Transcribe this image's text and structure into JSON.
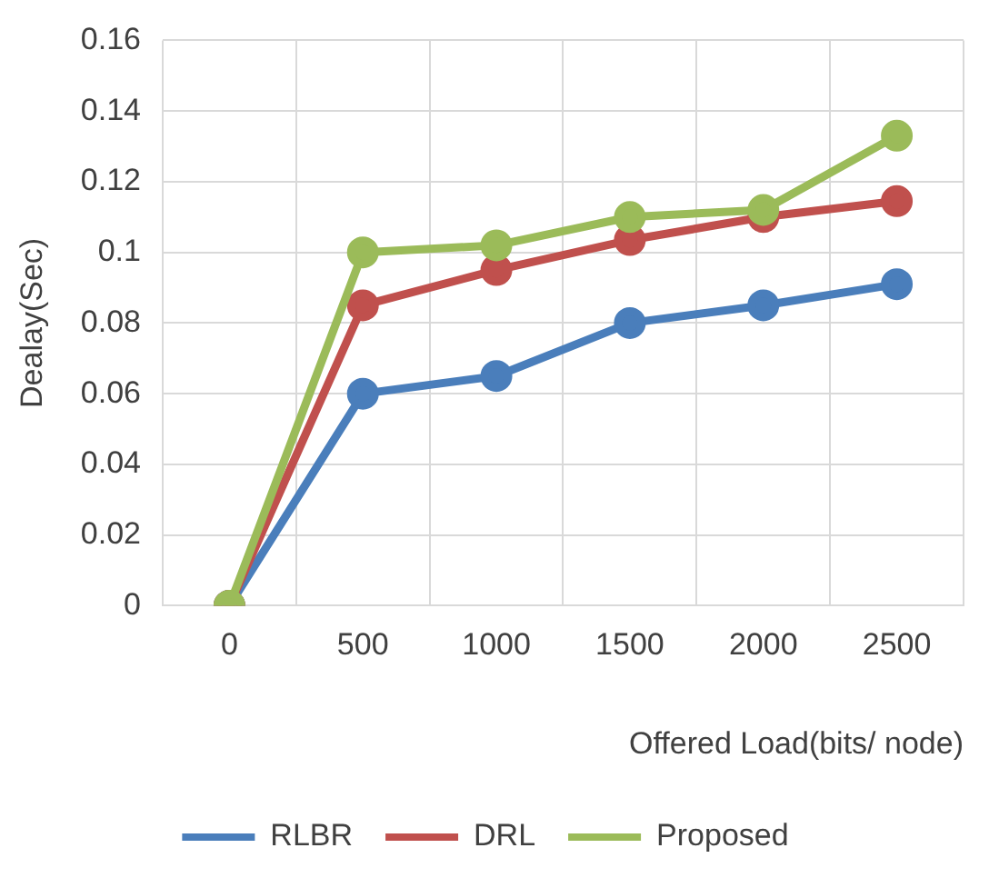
{
  "chart_data": {
    "type": "line",
    "xlabel": "Offered Load(bits/ node)",
    "ylabel": "Dealay(Sec)",
    "categories": [
      "0",
      "500",
      "1000",
      "1500",
      "2000",
      "2500"
    ],
    "series": [
      {
        "name": "RLBR",
        "color": "#4a7ebb",
        "values": [
          0,
          0.06,
          0.065,
          0.08,
          0.085,
          0.091
        ]
      },
      {
        "name": "DRL",
        "color": "#c0504d",
        "values": [
          0,
          0.085,
          0.095,
          0.1035,
          0.11,
          0.1145
        ]
      },
      {
        "name": "Proposed",
        "color": "#9bbb59",
        "values": [
          0,
          0.1,
          0.102,
          0.11,
          0.112,
          0.133
        ]
      }
    ],
    "ylim": [
      0,
      0.16
    ],
    "yticks": [
      0,
      0.02,
      0.04,
      0.06,
      0.08,
      0.1,
      0.12,
      0.14,
      0.16
    ],
    "grid": true,
    "legend": "bottom",
    "marker": "circle",
    "line_style": "solid"
  }
}
